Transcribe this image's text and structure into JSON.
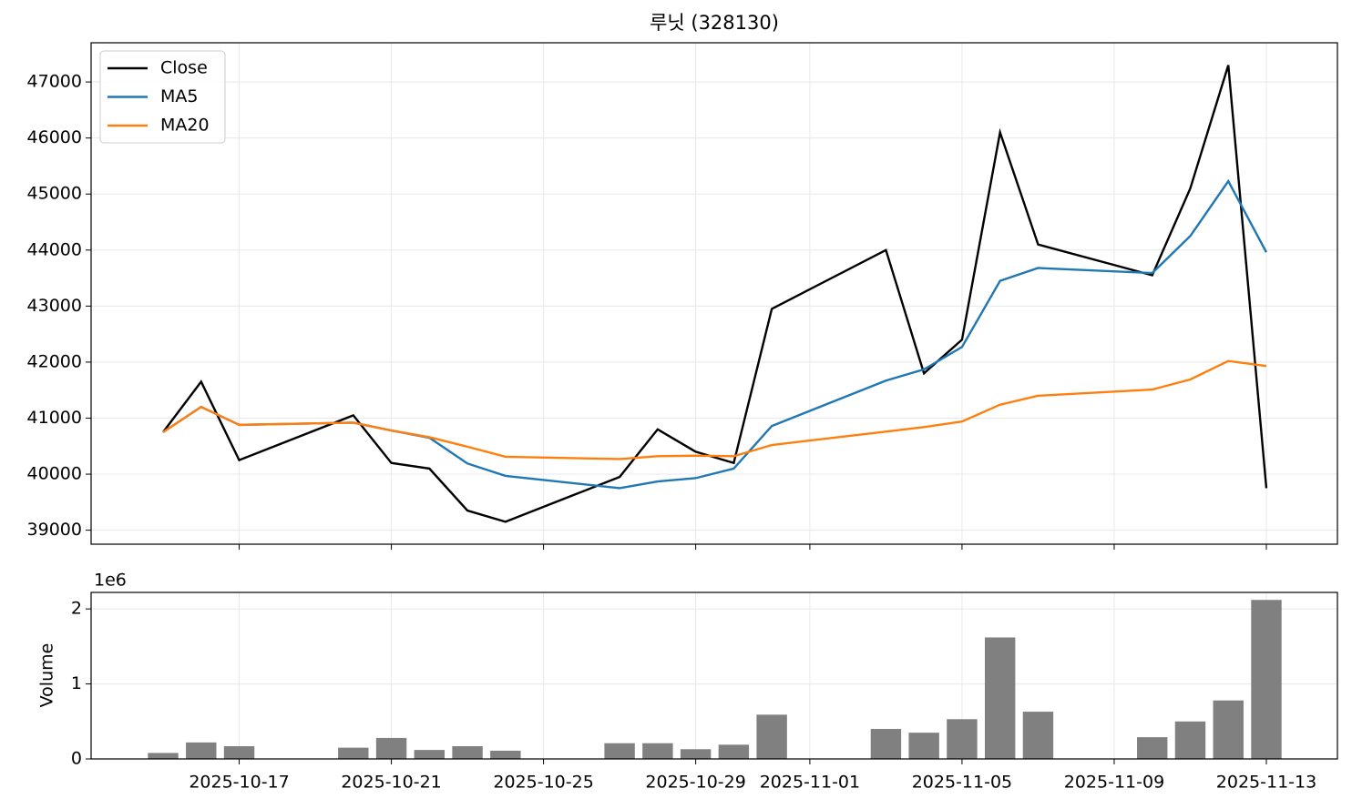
{
  "chart_data": [
    {
      "type": "line",
      "title": "루닛 (328130)",
      "x": [
        "2025-10-15",
        "2025-10-16",
        "2025-10-17",
        "2025-10-20",
        "2025-10-21",
        "2025-10-22",
        "2025-10-23",
        "2025-10-24",
        "2025-10-27",
        "2025-10-28",
        "2025-10-29",
        "2025-10-30",
        "2025-10-31",
        "2025-11-03",
        "2025-11-04",
        "2025-11-05",
        "2025-11-06",
        "2025-11-07",
        "2025-11-10",
        "2025-11-11",
        "2025-11-12",
        "2025-11-13"
      ],
      "series": [
        {
          "name": "Close",
          "color": "#000000",
          "values": [
            40750,
            41650,
            40250,
            41050,
            40200,
            40100,
            39350,
            39150,
            39950,
            40800,
            40400,
            40200,
            42950,
            44000,
            41800,
            42400,
            46100,
            44100,
            43550,
            45100,
            47300,
            39750
          ]
        },
        {
          "name": "MA5",
          "color": "#1f77b4",
          "values": [
            40750,
            41200,
            40880,
            40920,
            40780,
            40650,
            40190,
            39970,
            39750,
            39870,
            39930,
            40100,
            40860,
            41670,
            41870,
            42270,
            43450,
            43680,
            43590,
            44250,
            45230,
            43960
          ]
        },
        {
          "name": "MA20",
          "color": "#ff7f0e",
          "values": [
            40750,
            41200,
            40880,
            40920,
            40780,
            40660,
            40490,
            40310,
            40270,
            40320,
            40330,
            40320,
            40520,
            40760,
            40840,
            40940,
            41240,
            41400,
            41510,
            41690,
            42020,
            41930
          ]
        }
      ],
      "xlim": [
        "2025-10-13T02:35Z",
        "2025-11-14T20:50Z"
      ],
      "xticks": [
        "2025-10-17",
        "2025-10-21",
        "2025-10-25",
        "2025-10-29",
        "2025-11-01",
        "2025-11-05",
        "2025-11-09",
        "2025-11-13"
      ],
      "ylim": [
        38750,
        47700
      ],
      "yticks": [
        39000,
        40000,
        41000,
        42000,
        43000,
        44000,
        45000,
        46000,
        47000
      ],
      "grid": true,
      "legend": "upper-left"
    },
    {
      "type": "bar",
      "ylabel": "Volume",
      "offset_label": "1e6",
      "color": "#808080",
      "x": [
        "2025-10-15",
        "2025-10-16",
        "2025-10-17",
        "2025-10-20",
        "2025-10-21",
        "2025-10-22",
        "2025-10-23",
        "2025-10-24",
        "2025-10-27",
        "2025-10-28",
        "2025-10-29",
        "2025-10-30",
        "2025-10-31",
        "2025-11-03",
        "2025-11-04",
        "2025-11-05",
        "2025-11-06",
        "2025-11-07",
        "2025-11-10",
        "2025-11-11",
        "2025-11-12",
        "2025-11-13"
      ],
      "values": [
        0.08,
        0.22,
        0.17,
        0.15,
        0.28,
        0.12,
        0.17,
        0.11,
        0.21,
        0.21,
        0.13,
        0.19,
        0.59,
        0.4,
        0.35,
        0.53,
        1.62,
        0.63,
        0.29,
        0.5,
        0.78,
        2.12
      ],
      "xlim": [
        "2025-10-13T02:35Z",
        "2025-11-14T20:50Z"
      ],
      "xticks": [
        "2025-10-17",
        "2025-10-21",
        "2025-10-25",
        "2025-10-29",
        "2025-11-01",
        "2025-11-05",
        "2025-11-09",
        "2025-11-13"
      ],
      "ylim": [
        0,
        2.22
      ],
      "yticks": [
        0,
        1,
        2
      ],
      "grid": true
    }
  ]
}
